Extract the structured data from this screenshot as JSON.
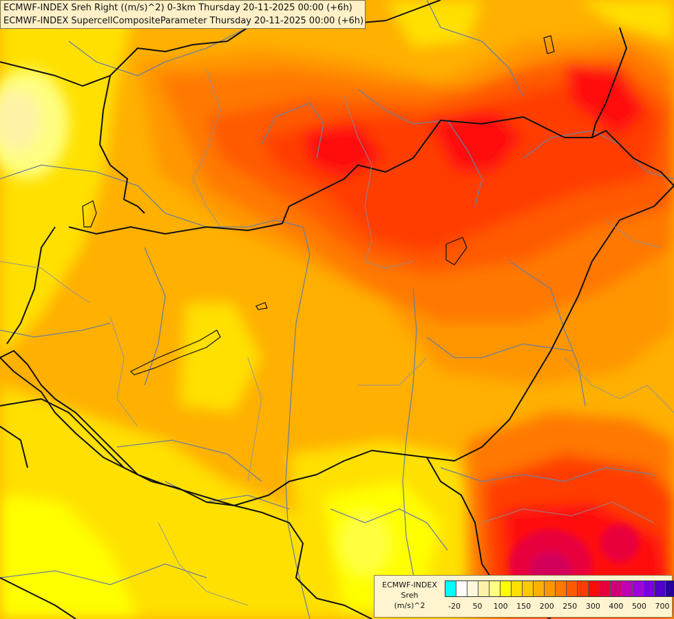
{
  "header": {
    "line1": "ECMWF-INDEX Sreh Right ((m/s)^2) 0-3km Thursday 20-11-2025 00:00 (+6h)",
    "line2": "ECMWF-INDEX SupercellCompositeParameter Thursday 20-11-2025 00:00 (+6h)"
  },
  "legend": {
    "title1": "ECMWF-INDEX",
    "title2": "Sreh",
    "title3": "(m/s)^2",
    "colors": [
      "#00ffff",
      "#ffffff",
      "#fff8dc",
      "#fff2a6",
      "#ffff80",
      "#ffff00",
      "#ffe000",
      "#ffc800",
      "#ffb000",
      "#ff9600",
      "#ff7800",
      "#ff5a00",
      "#ff3c00",
      "#ff0a0a",
      "#e8003c",
      "#d20078",
      "#c000b4",
      "#a000d8",
      "#7800e0",
      "#5000c8",
      "#28009a",
      "#0a006a"
    ],
    "ticks": [
      "-20",
      "50",
      "100",
      "150",
      "200",
      "250",
      "300",
      "400",
      "500",
      "700"
    ]
  }
}
